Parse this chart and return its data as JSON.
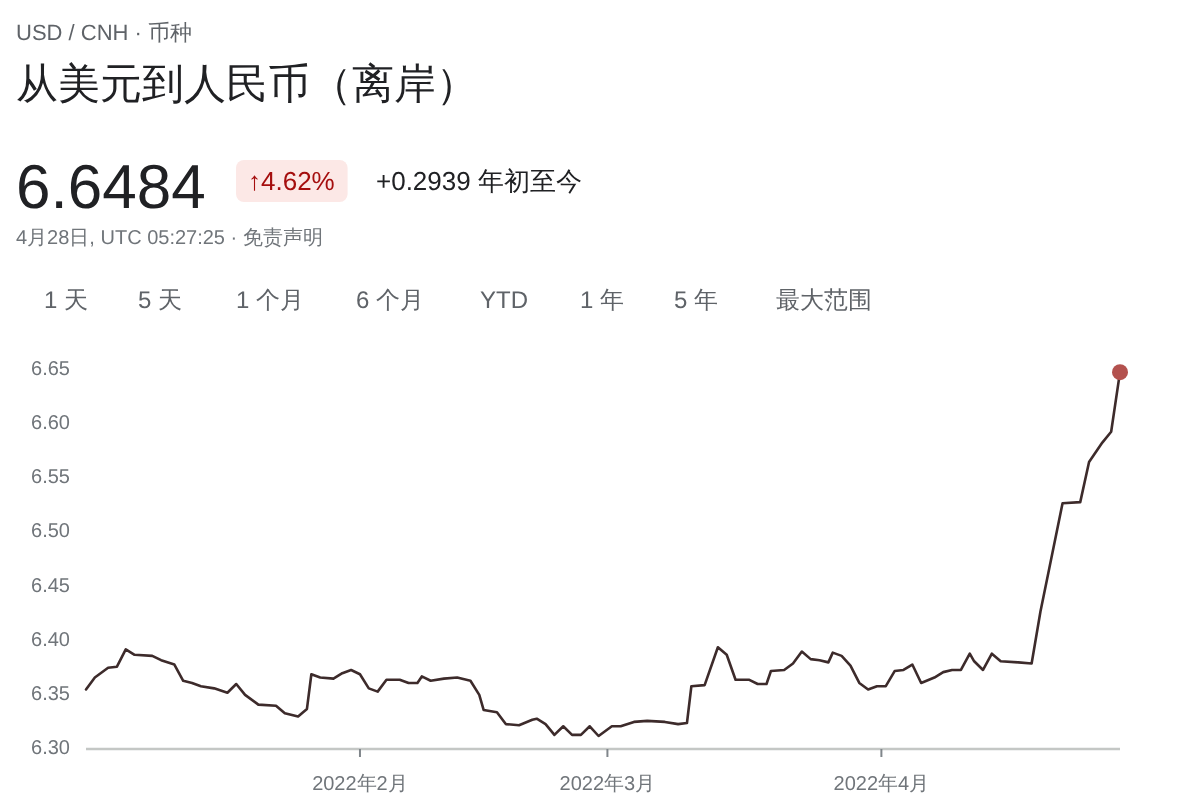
{
  "chart_data": {
    "type": "line",
    "subtitle": "USD / CNH · 币种",
    "title": "从美元到人民币（离岸）",
    "annotations": [
      "6.6484",
      "↑4.62%",
      "+0.2939 年初至今",
      "4月28日, UTC 05:27:25 · 免责声明",
      "1 天",
      "5 天",
      "1 个月",
      "6 个月",
      "YTD",
      "1 年",
      "5 年",
      "最大范围"
    ],
    "xlim": [
      "2022-01-01",
      "2022-04-28"
    ],
    "xticks": [
      {
        "value": "2022-02-01",
        "label": "2022年2月"
      },
      {
        "value": "2022-03-01",
        "label": "2022年3月"
      },
      {
        "value": "2022-04-01",
        "label": "2022年4月"
      }
    ],
    "ylim": [
      6.3,
      6.65
    ],
    "yticks": [
      {
        "value": 6.3,
        "label": "6.30"
      },
      {
        "value": 6.35,
        "label": "6.35"
      },
      {
        "value": 6.4,
        "label": "6.40"
      },
      {
        "value": 6.45,
        "label": "6.45"
      },
      {
        "value": 6.5,
        "label": "6.50"
      },
      {
        "value": 6.55,
        "label": "6.55"
      },
      {
        "value": 6.6,
        "label": "6.60"
      },
      {
        "value": 6.65,
        "label": "6.65"
      }
    ],
    "series": [
      {
        "color": "#3d2b2b",
        "x": [
          "2022-01-01",
          "2022-01-02",
          "2022-01-03T12:00",
          "2022-01-04T12:00",
          "2022-01-05T12:00",
          "2022-01-06T12:00",
          "2022-01-08T12:00",
          "2022-01-09T12:00",
          "2022-01-11",
          "2022-01-12",
          "2022-01-13",
          "2022-01-14",
          "2022-01-15T12:00",
          "2022-01-17",
          "2022-01-18",
          "2022-01-19",
          "2022-01-20T12:00",
          "2022-01-22T12:00",
          "2022-01-23T12:00",
          "2022-01-25",
          "2022-01-26",
          "2022-01-26T12:00",
          "2022-01-27T12:00",
          "2022-01-29",
          "2022-01-30",
          "2022-01-31",
          "2022-02-01",
          "2022-02-02",
          "2022-02-03",
          "2022-02-04",
          "2022-02-05T12:00",
          "2022-02-06T12:00",
          "2022-02-07T12:00",
          "2022-02-08",
          "2022-02-09",
          "2022-02-10T12:00",
          "2022-02-12",
          "2022-02-13T12:00",
          "2022-02-14T12:00",
          "2022-02-15",
          "2022-02-16T12:00",
          "2022-02-17T12:00",
          "2022-02-19",
          "2022-02-20T12:00",
          "2022-02-21",
          "2022-02-22",
          "2022-02-23",
          "2022-02-24",
          "2022-02-25",
          "2022-02-26",
          "2022-02-27",
          "2022-02-28",
          "2022-03-01T12:00",
          "2022-03-02T12:00",
          "2022-03-04",
          "2022-03-05T12:00",
          "2022-03-07T12:00",
          "2022-03-09",
          "2022-03-10",
          "2022-03-10T12:00",
          "2022-03-12",
          "2022-03-13T12:00",
          "2022-03-14T12:00",
          "2022-03-15T12:00",
          "2022-03-17",
          "2022-03-18",
          "2022-03-19",
          "2022-03-19T12:00",
          "2022-03-21",
          "2022-03-22",
          "2022-03-23",
          "2022-03-24",
          "2022-03-25",
          "2022-03-26",
          "2022-03-26T12:00",
          "2022-03-27T12:00",
          "2022-03-28T12:00",
          "2022-03-29T12:00",
          "2022-03-30T12:00",
          "2022-03-31T12:00",
          "2022-04-01T12:00",
          "2022-04-02T12:00",
          "2022-04-03T12:00",
          "2022-04-04T12:00",
          "2022-04-05T12:00",
          "2022-04-07",
          "2022-04-08",
          "2022-04-09",
          "2022-04-10",
          "2022-04-11",
          "2022-04-11T12:00",
          "2022-04-12T12:00",
          "2022-04-13T12:00",
          "2022-04-14T12:00",
          "2022-04-16T12:00",
          "2022-04-18",
          "2022-04-19",
          "2022-04-20",
          "2022-04-21T12:00",
          "2022-04-23T12:00",
          "2022-04-24T12:00",
          "2022-04-26",
          "2022-04-27",
          "2022-04-28"
        ],
        "values": [
          6.355,
          6.366,
          6.375,
          6.376,
          6.392,
          6.387,
          6.386,
          6.382,
          6.378,
          6.363,
          6.361,
          6.358,
          6.356,
          6.352,
          6.36,
          6.35,
          6.341,
          6.34,
          6.333,
          6.33,
          6.337,
          6.369,
          6.366,
          6.365,
          6.37,
          6.373,
          6.369,
          6.356,
          6.353,
          6.364,
          6.364,
          6.361,
          6.361,
          6.367,
          6.363,
          6.365,
          6.366,
          6.363,
          6.35,
          6.336,
          6.334,
          6.323,
          6.322,
          6.327,
          6.328,
          6.323,
          6.313,
          6.321,
          6.313,
          6.313,
          6.321,
          6.312,
          6.321,
          6.321,
          6.325,
          6.326,
          6.325,
          6.323,
          6.324,
          6.358,
          6.359,
          6.394,
          6.387,
          6.364,
          6.364,
          6.36,
          6.36,
          6.372,
          6.373,
          6.379,
          6.39,
          6.383,
          6.382,
          6.38,
          6.389,
          6.386,
          6.377,
          6.361,
          6.355,
          6.358,
          6.358,
          6.372,
          6.373,
          6.378,
          6.361,
          6.366,
          6.371,
          6.373,
          6.373,
          6.388,
          6.381,
          6.373,
          6.388,
          6.381,
          6.38,
          6.379,
          6.427,
          6.467,
          6.527,
          6.528,
          6.565,
          6.583,
          6.593,
          6.648
        ]
      },
      {
        "type": "scatter",
        "marker": "circle",
        "color": "#b3514e",
        "x": [
          "2022-04-28"
        ],
        "values": [
          6.648
        ]
      }
    ]
  }
}
